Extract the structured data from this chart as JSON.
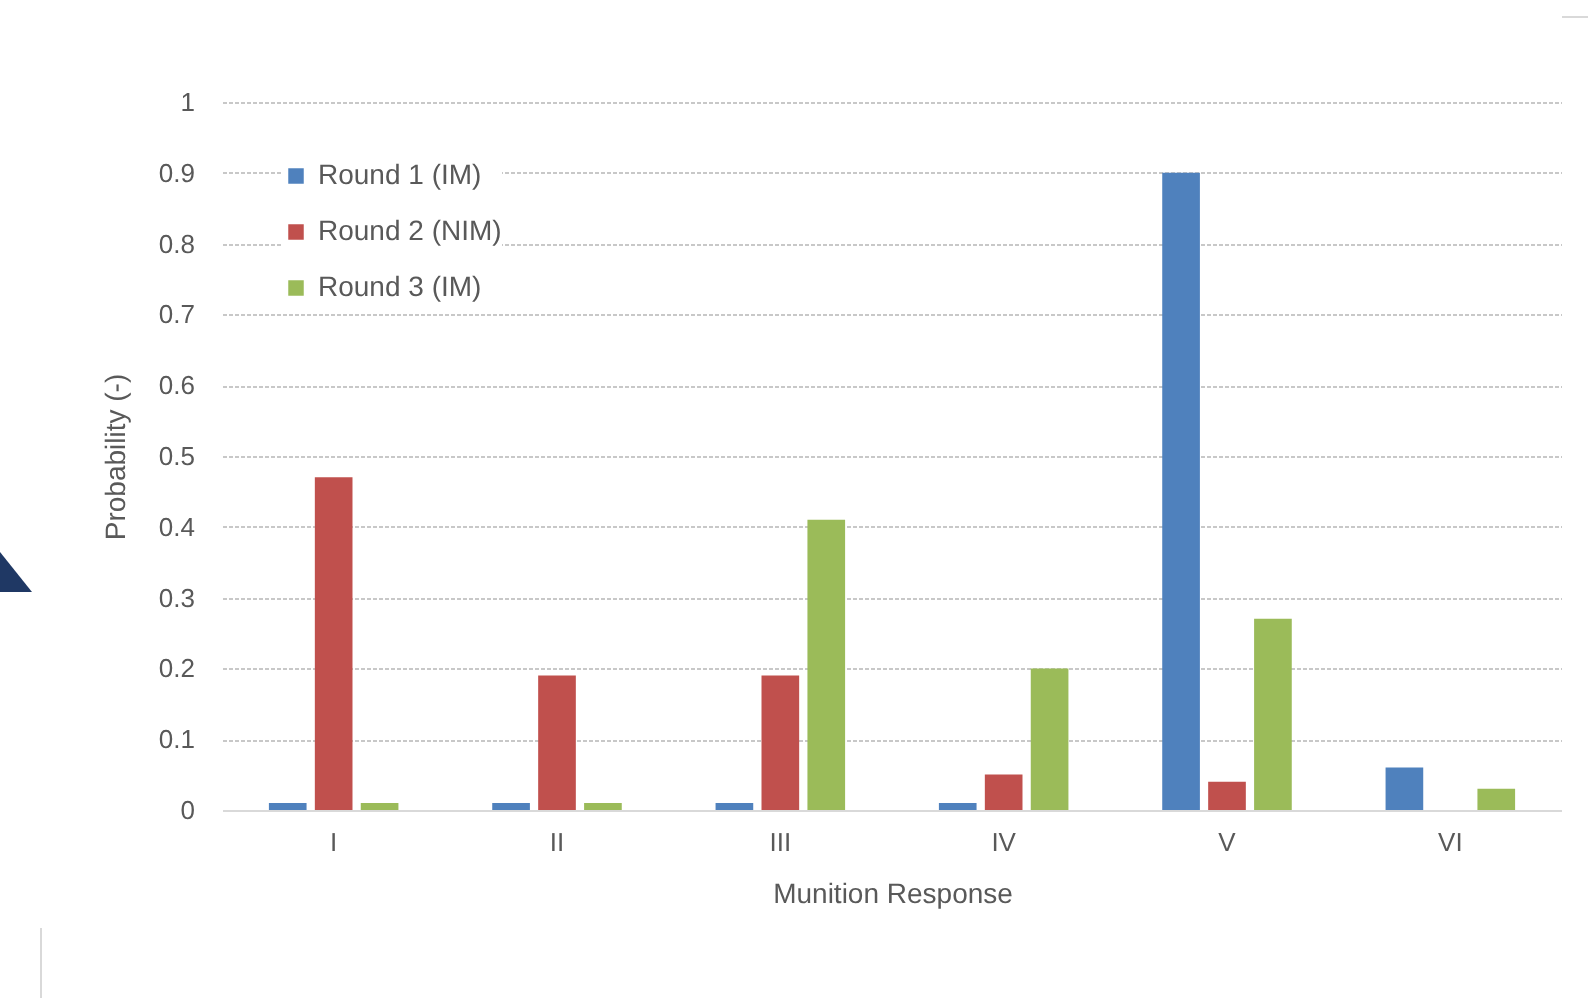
{
  "chart_data": {
    "type": "bar",
    "xlabel": "Munition Response",
    "ylabel": "Probability (-)",
    "categories": [
      "I",
      "II",
      "III",
      "IV",
      "V",
      "VI"
    ],
    "series": [
      {
        "name": "Round 1 (IM)",
        "color": "#4f81bd",
        "values": [
          0.01,
          0.01,
          0.01,
          0.01,
          0.9,
          0.06
        ]
      },
      {
        "name": "Round 2 (NIM)",
        "color": "#c0504d",
        "values": [
          0.47,
          0.19,
          0.19,
          0.05,
          0.04,
          0
        ]
      },
      {
        "name": "Round 3 (IM)",
        "color": "#9bbb59",
        "values": [
          0.01,
          0.01,
          0.41,
          0.2,
          0.27,
          0.03
        ]
      }
    ],
    "ylim": [
      0,
      1
    ],
    "yticks": [
      0,
      0.1,
      0.2,
      0.3,
      0.4,
      0.5,
      0.6,
      0.7,
      0.8,
      0.9,
      1
    ],
    "grid": "y",
    "legend": "top left"
  }
}
